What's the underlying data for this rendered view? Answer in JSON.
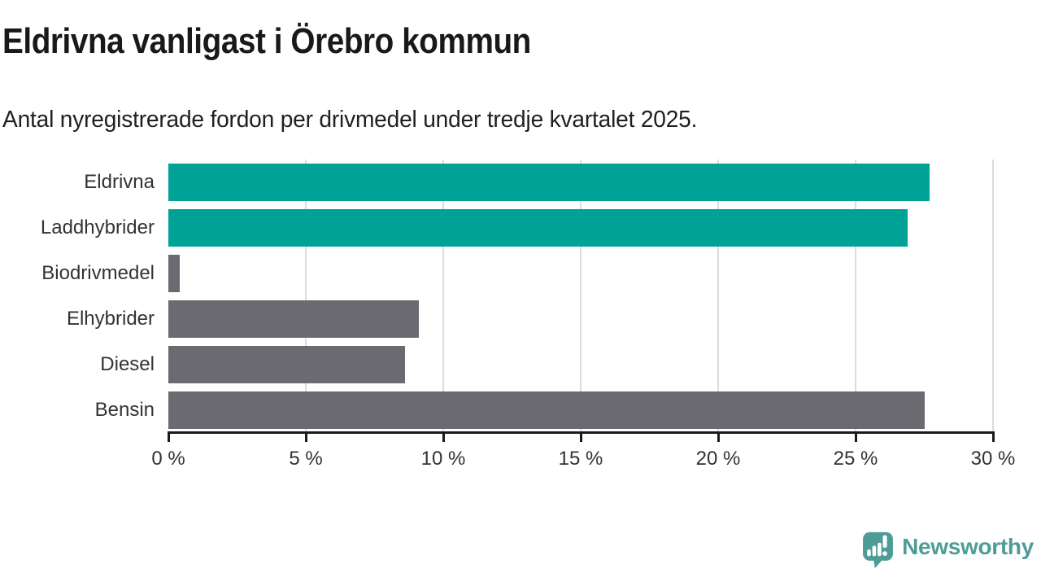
{
  "header": {
    "title": "Eldrivna vanligast i Örebro kommun",
    "subtitle": "Antal nyregistrerade fordon per drivmedel under tredje kvartalet 2025."
  },
  "chart_data": {
    "type": "bar",
    "orientation": "horizontal",
    "title": "Eldrivna vanligast i Örebro kommun",
    "subtitle": "Antal nyregistrerade fordon per drivmedel under tredje kvartalet 2025.",
    "categories": [
      "Eldrivna",
      "Laddhybrider",
      "Biodrivmedel",
      "Elhybrider",
      "Diesel",
      "Bensin"
    ],
    "values": [
      27.7,
      26.9,
      0.4,
      9.1,
      8.6,
      27.5
    ],
    "unit": "%",
    "bar_colors": [
      "#00A296",
      "#00A296",
      "#6A6A70",
      "#6A6A70",
      "#6A6A70",
      "#6A6A70"
    ],
    "highlight_color": "#00A296",
    "default_color": "#6A6A70",
    "xlabel": "",
    "ylabel": "",
    "xlim": [
      0,
      30
    ],
    "x_ticks": [
      0,
      5,
      10,
      15,
      20,
      25,
      30
    ],
    "x_tick_labels": [
      "0 %",
      "5 %",
      "10 %",
      "15 %",
      "20 %",
      "25 %",
      "30 %"
    ],
    "grid": "vertical-only",
    "gridline_color": "#dcdcdc",
    "axis_color": "#1a1a1a",
    "label_color": "#333333",
    "legend": "none"
  },
  "footer": {
    "brand": "Newsworthy",
    "brand_color": "#4E9C98"
  }
}
